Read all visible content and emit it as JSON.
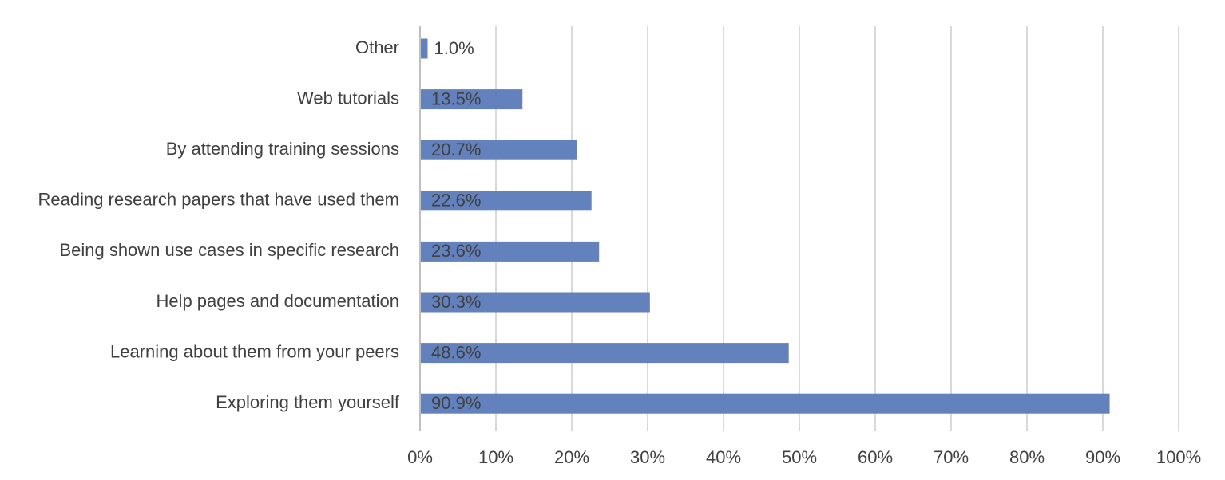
{
  "chart_data": {
    "type": "bar",
    "orientation": "horizontal",
    "categories": [
      "Other",
      "Web tutorials",
      "By attending training sessions",
      "Reading research papers that have used them",
      "Being shown use cases in specific research",
      "Help pages and documentation",
      "Learning about them from your peers",
      "Exploring them yourself"
    ],
    "values": [
      1.0,
      13.5,
      20.7,
      22.6,
      23.6,
      30.3,
      48.6,
      90.9
    ],
    "data_labels": [
      "1.0%",
      "13.5%",
      "20.7%",
      "22.6%",
      "23.6%",
      "30.3%",
      "48.6%",
      "90.9%"
    ],
    "xlim": [
      0,
      100
    ],
    "x_ticks": [
      0,
      10,
      20,
      30,
      40,
      50,
      60,
      70,
      80,
      90,
      100
    ],
    "x_tick_labels": [
      "0%",
      "10%",
      "20%",
      "30%",
      "40%",
      "50%",
      "60%",
      "70%",
      "80%",
      "90%",
      "100%"
    ],
    "grid": "vertical",
    "legend": "none",
    "title": "",
    "xlabel": "",
    "ylabel": "",
    "bar_color": "#6281BD",
    "grid_color": "#D9D9D9",
    "axis_color": "#BFBFBF",
    "text_color": "#404040"
  }
}
